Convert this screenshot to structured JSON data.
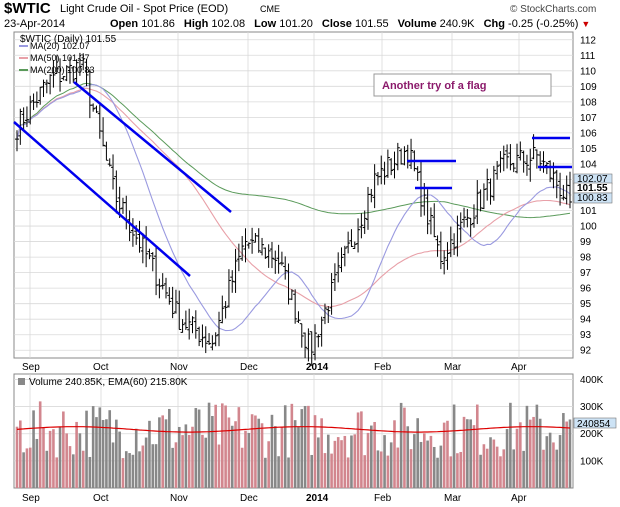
{
  "header": {
    "symbol": "$WTIC",
    "name": "Light Crude Oil - Spot Price (EOD)",
    "exchange": "CME",
    "watermark": "© StockCharts.com",
    "date": "23-Apr-2014",
    "quote": {
      "open_label": "Open",
      "open": "101.86",
      "high_label": "High",
      "high": "102.08",
      "low_label": "Low",
      "low": "101.20",
      "close_label": "Close",
      "close": "101.55",
      "volume_label": "Volume",
      "volume": "240.9K",
      "chg_label": "Chg",
      "chg": "-0.25 (-0.25%)"
    }
  },
  "price_legend": {
    "title": "$WTIC (Daily) 101.55",
    "ma20": "MA(20) 102.07",
    "ma50": "MA(50) 101.37",
    "ma200": "MA(200) 100.83"
  },
  "annotation": "Another try of a flag",
  "volume_legend": "Volume 240.85K, EMA(60) 215.80K",
  "colors": {
    "ma20": "#9a9ae0",
    "ma50": "#e8a0a8",
    "ma200": "#5a9a5a",
    "ema60": "#dd0000",
    "vol_up": "#d2868e",
    "vol_down": "#888888",
    "trendline": "#0000ee",
    "annotation_text": "#8b1a6b",
    "grid": "#d9d9d9",
    "tag_fill": "#cde3f5"
  },
  "chart_data": [
    {
      "type": "ohlc",
      "title": "$WTIC (Daily) 101.55",
      "x_axis": {
        "ticks": [
          "Sep",
          "Oct",
          "Nov",
          "Dec",
          "2014",
          "Feb",
          "Mar",
          "Apr"
        ]
      },
      "y_axis": {
        "ticks": [
          92,
          93,
          94,
          95,
          96,
          97,
          98,
          99,
          100,
          101,
          102,
          103,
          104,
          105,
          106,
          107,
          108,
          109,
          110,
          111,
          112
        ],
        "ylim": [
          91.5,
          112.5
        ]
      },
      "last_value_tags": [
        "102.07",
        "101.55",
        "100.83"
      ],
      "series": [
        {
          "name": "$WTIC",
          "key_points": [
            [
              "Aug-23",
              106.4
            ],
            [
              "Aug-28",
              109.4
            ],
            [
              "Sep-06",
              110.4
            ],
            [
              "Oct-01",
              102.0
            ],
            [
              "Oct-21",
              98.0
            ],
            [
              "Nov-06",
              94.0
            ],
            [
              "Nov-27",
              92.5
            ],
            [
              "Dec-20",
              99.0
            ],
            [
              "Jan-06",
              98.0
            ],
            [
              "Jan-13",
              92.0
            ],
            [
              "Feb-06",
              97.5
            ],
            [
              "Feb-21",
              103.0
            ],
            [
              "Feb-27",
              105.0
            ],
            [
              "Mar-17",
              98.0
            ],
            [
              "Apr-03",
              101.0
            ],
            [
              "Apr-10",
              104.0
            ],
            [
              "Apr-17",
              104.5
            ],
            [
              "Apr-23",
              101.55
            ]
          ]
        },
        {
          "name": "MA(20)",
          "value": 102.07
        },
        {
          "name": "MA(50)",
          "value": 101.37
        },
        {
          "name": "MA(200)",
          "value": 100.83
        }
      ],
      "annotation": "Another try of a flag"
    },
    {
      "type": "bar",
      "title": "Volume 240.85K, EMA(60) 215.80K",
      "y_axis": {
        "ticks": [
          "100K",
          "200K",
          "300K",
          "400K"
        ],
        "ylim": [
          0,
          420
        ]
      },
      "last_value_tag": "240854",
      "series": [
        {
          "name": "Volume",
          "last": "240.85K"
        },
        {
          "name": "EMA(60)",
          "last": "215.80K",
          "approx_level": 216
        }
      ]
    }
  ]
}
